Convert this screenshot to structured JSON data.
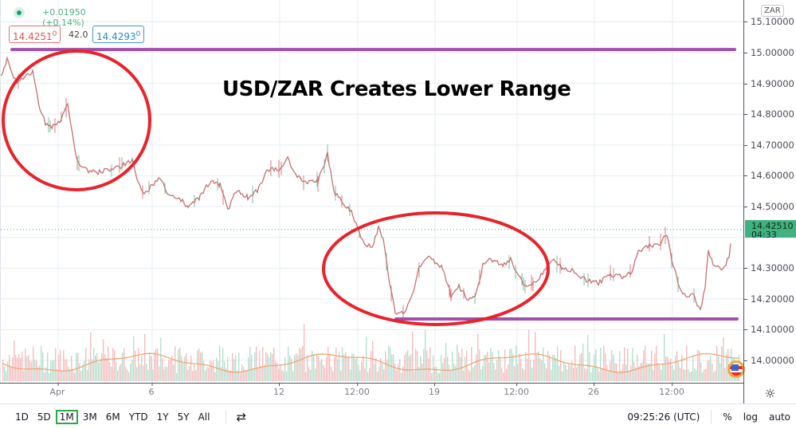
{
  "legend": {
    "change": "+0.01950 (+0.14%)",
    "bid_main": "14.4251",
    "bid_sup": "0",
    "spread": "42.0",
    "ask_main": "14.4293",
    "ask_sup": "0"
  },
  "annotation": {
    "title": "USD/ZAR Creates Lower Range",
    "colors": {
      "circle": "#e8232a",
      "range_line": "#a14fa8"
    }
  },
  "price_axis": {
    "currency": "ZAR",
    "ticks": [
      "15.10000",
      "15.00000",
      "14.90000",
      "14.80000",
      "14.70000",
      "14.60000",
      "14.50000",
      "14.30000",
      "14.20000",
      "14.10000",
      "14.00000"
    ],
    "last_price": "14.42510",
    "countdown": "04:33"
  },
  "time_axis": {
    "ticks": [
      "Apr",
      "6",
      "12",
      "12:00",
      "19",
      "12:00",
      "26",
      "12:00"
    ]
  },
  "bottom_bar": {
    "ranges": [
      "1D",
      "5D",
      "1M",
      "3M",
      "6M",
      "YTD",
      "1Y",
      "5Y",
      "All"
    ],
    "active_range": "1M",
    "clock": "09:25:26 (UTC)",
    "percent": "%",
    "log": "log",
    "auto": "auto"
  },
  "chart_data": {
    "type": "candlestick",
    "symbol": "USD/ZAR",
    "title": "USD/ZAR Creates Lower Range",
    "ylim": [
      13.92,
      15.13
    ],
    "y_ticks": [
      14.0,
      14.1,
      14.2,
      14.3,
      14.4,
      14.5,
      14.6,
      14.7,
      14.8,
      14.9,
      15.0,
      15.1
    ],
    "x_ticks": [
      "Apr",
      "6",
      "12",
      "12:00",
      "19",
      "12:00",
      "26",
      "12:00"
    ],
    "close_path": [
      [
        0,
        14.92
      ],
      [
        8,
        14.98
      ],
      [
        14,
        14.93
      ],
      [
        22,
        14.9
      ],
      [
        30,
        14.92
      ],
      [
        40,
        14.94
      ],
      [
        48,
        14.83
      ],
      [
        56,
        14.77
      ],
      [
        64,
        14.76
      ],
      [
        74,
        14.78
      ],
      [
        84,
        14.83
      ],
      [
        90,
        14.73
      ],
      [
        96,
        14.65
      ],
      [
        106,
        14.62
      ],
      [
        120,
        14.61
      ],
      [
        135,
        14.62
      ],
      [
        150,
        14.63
      ],
      [
        165,
        14.65
      ],
      [
        172,
        14.58
      ],
      [
        180,
        14.54
      ],
      [
        190,
        14.57
      ],
      [
        200,
        14.59
      ],
      [
        210,
        14.54
      ],
      [
        222,
        14.53
      ],
      [
        235,
        14.5
      ],
      [
        250,
        14.53
      ],
      [
        262,
        14.58
      ],
      [
        275,
        14.57
      ],
      [
        285,
        14.49
      ],
      [
        295,
        14.55
      ],
      [
        310,
        14.53
      ],
      [
        322,
        14.55
      ],
      [
        335,
        14.62
      ],
      [
        350,
        14.62
      ],
      [
        360,
        14.66
      ],
      [
        370,
        14.6
      ],
      [
        385,
        14.58
      ],
      [
        398,
        14.58
      ],
      [
        410,
        14.67
      ],
      [
        418,
        14.55
      ],
      [
        430,
        14.51
      ],
      [
        440,
        14.48
      ],
      [
        448,
        14.43
      ],
      [
        456,
        14.38
      ],
      [
        466,
        14.37
      ],
      [
        474,
        14.43
      ],
      [
        480,
        14.4
      ],
      [
        488,
        14.25
      ],
      [
        495,
        14.16
      ],
      [
        505,
        14.15
      ],
      [
        515,
        14.2
      ],
      [
        525,
        14.3
      ],
      [
        535,
        14.34
      ],
      [
        545,
        14.32
      ],
      [
        555,
        14.3
      ],
      [
        565,
        14.21
      ],
      [
        575,
        14.24
      ],
      [
        585,
        14.2
      ],
      [
        595,
        14.2
      ],
      [
        605,
        14.31
      ],
      [
        615,
        14.33
      ],
      [
        630,
        14.31
      ],
      [
        640,
        14.33
      ],
      [
        650,
        14.27
      ],
      [
        660,
        14.24
      ],
      [
        670,
        14.25
      ],
      [
        682,
        14.29
      ],
      [
        692,
        14.33
      ],
      [
        705,
        14.3
      ],
      [
        720,
        14.29
      ],
      [
        735,
        14.26
      ],
      [
        750,
        14.25
      ],
      [
        765,
        14.28
      ],
      [
        780,
        14.27
      ],
      [
        792,
        14.29
      ],
      [
        800,
        14.35
      ],
      [
        812,
        14.37
      ],
      [
        828,
        14.38
      ],
      [
        836,
        14.41
      ],
      [
        842,
        14.33
      ],
      [
        850,
        14.25
      ],
      [
        858,
        14.21
      ],
      [
        870,
        14.21
      ],
      [
        878,
        14.16
      ],
      [
        884,
        14.24
      ],
      [
        888,
        14.36
      ],
      [
        896,
        14.3
      ],
      [
        908,
        14.3
      ],
      [
        914,
        14.34
      ],
      [
        918,
        14.42
      ]
    ],
    "support_line": 14.14,
    "resistance_line": 15.01,
    "last": 14.4251,
    "volume": {
      "ma_color": "#f0a266",
      "up_color": "#a8dbc5",
      "down_color": "#f3b3b5"
    }
  }
}
